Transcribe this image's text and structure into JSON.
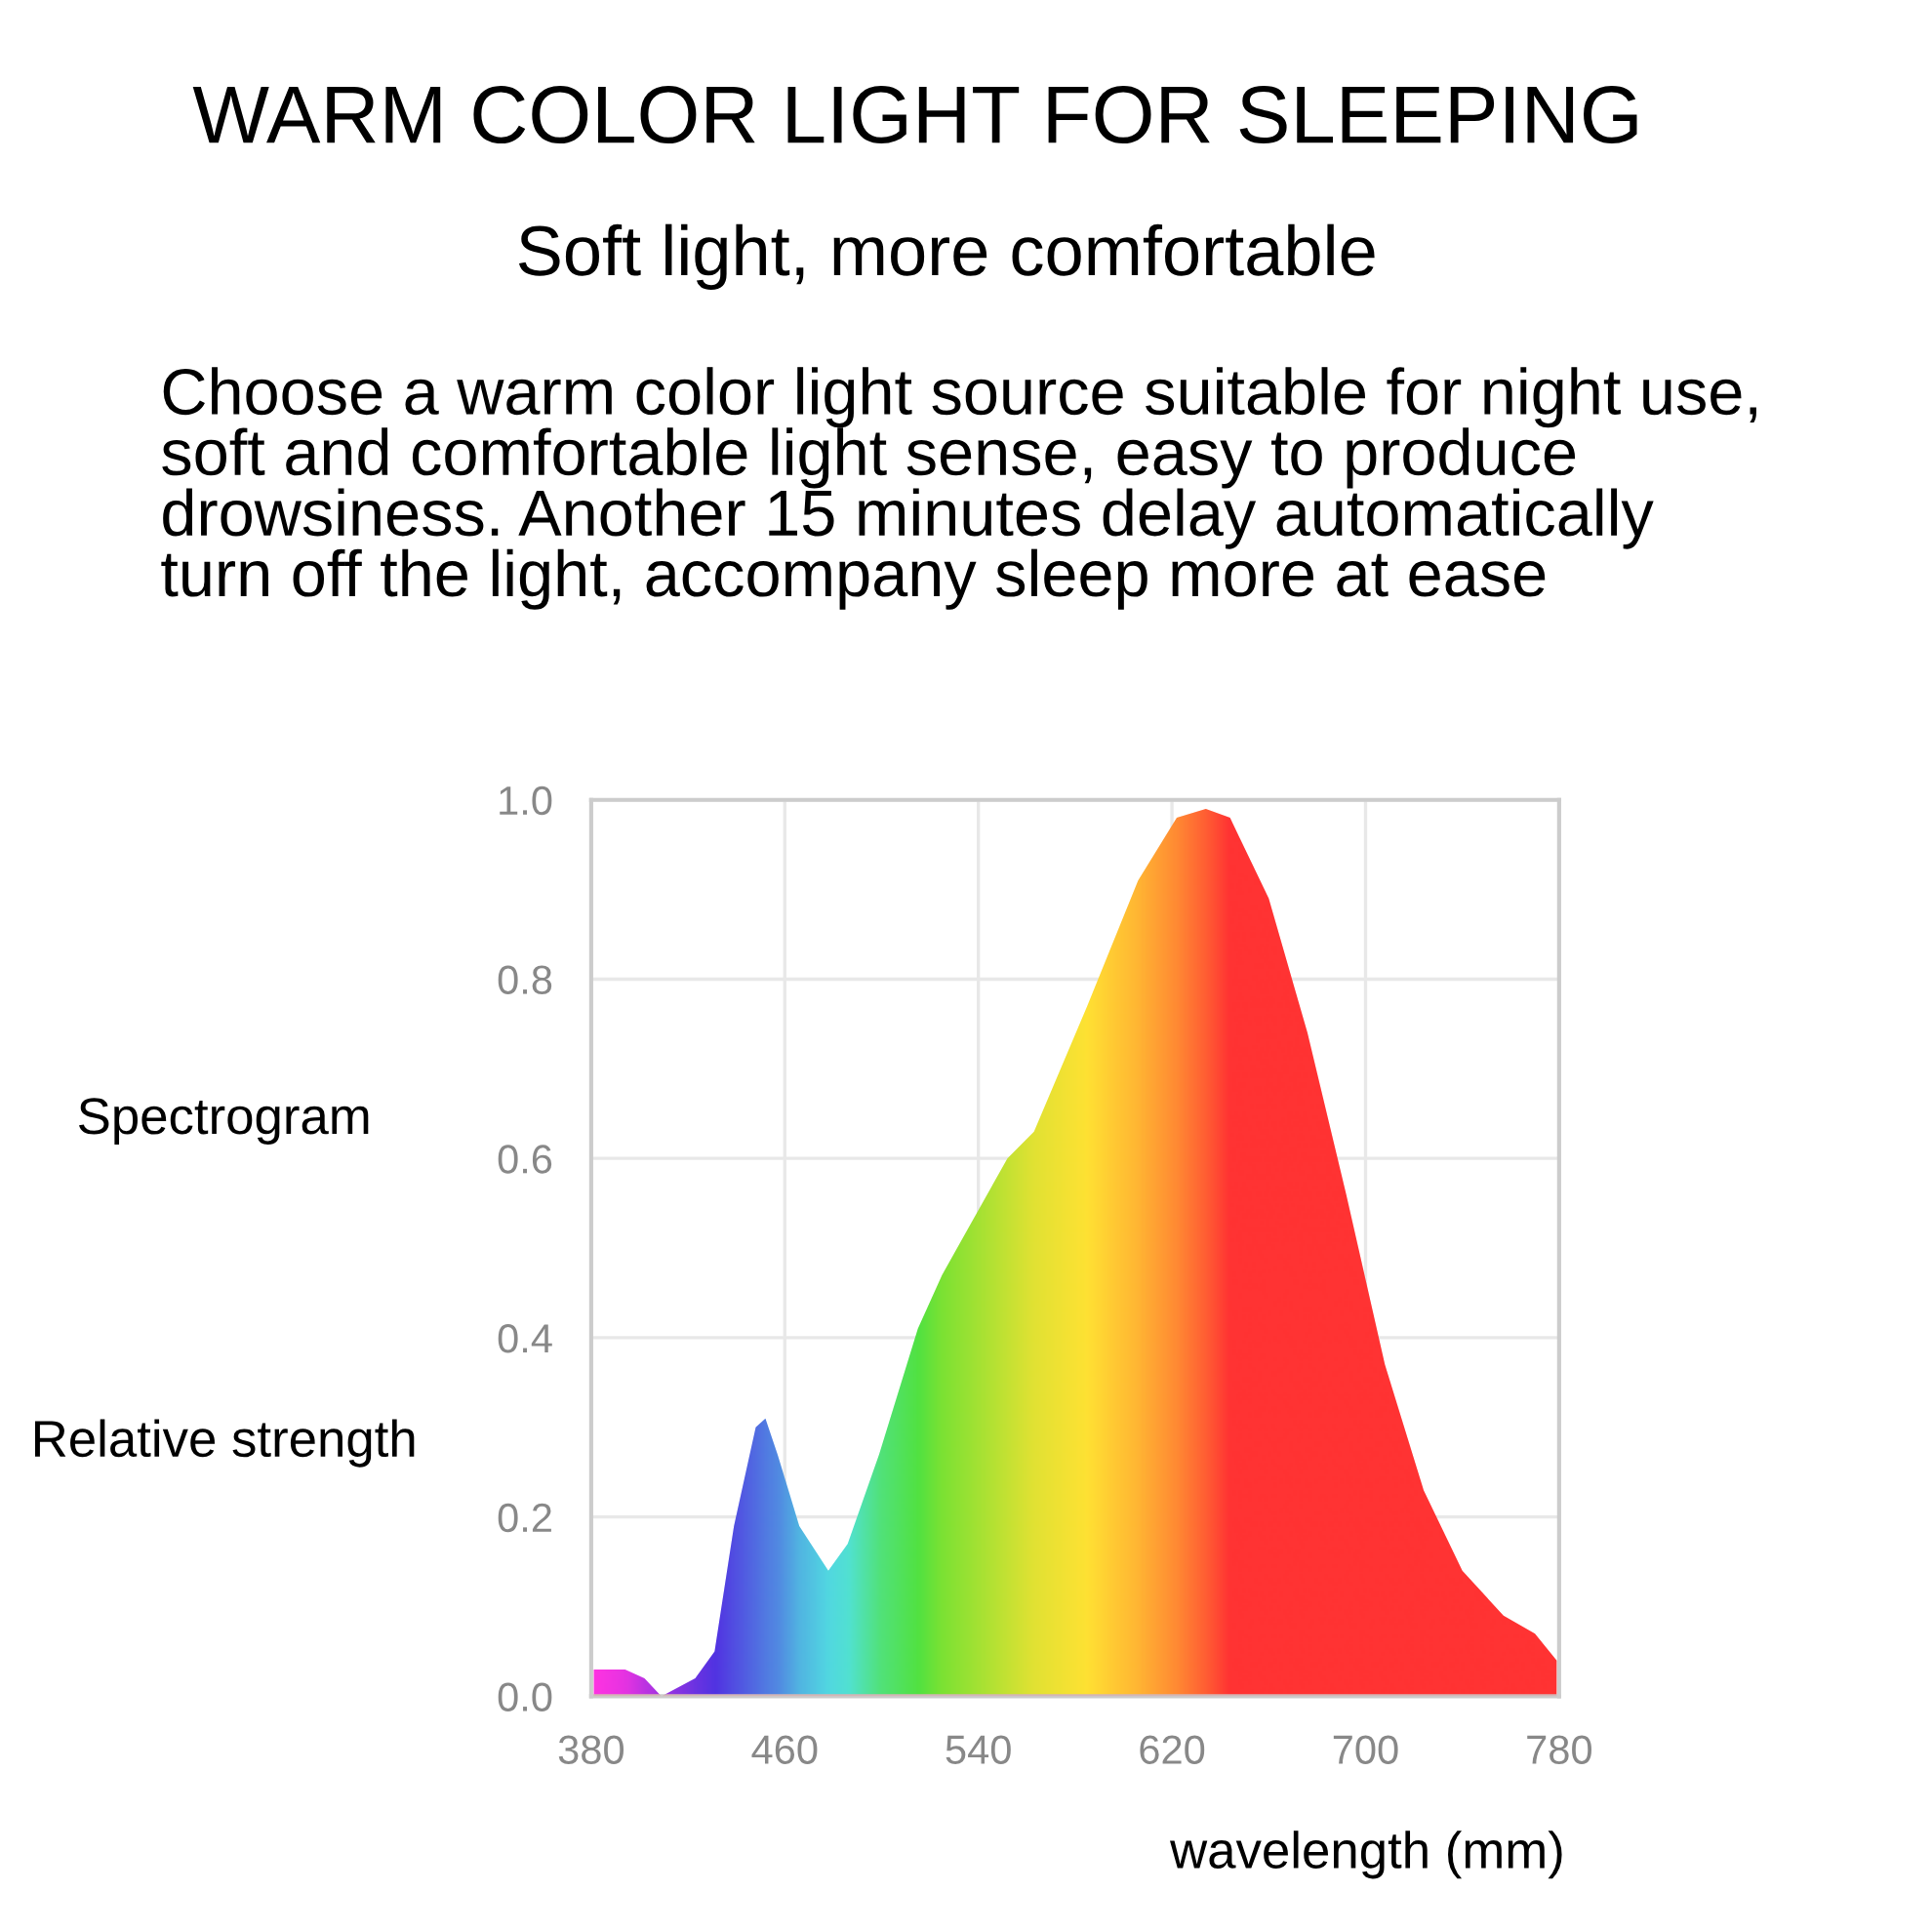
{
  "chart_data": {
    "type": "area",
    "title": "WARM COLOR LIGHT FOR SLEEPING",
    "subtitle": "Soft light, more comfortable",
    "annotations": [
      "Choose a warm color light source suitable for night use, soft and comfortable light sense, easy to produce drowsiness. Another 15 minutes delay automatically turn off the light, accompany sleep more at ease"
    ],
    "ylabel": "Spectrogram\nRelative strength",
    "xlabel": "wavelength (mm)",
    "x": [
      381,
      394,
      402,
      409,
      423,
      431,
      439,
      448,
      452,
      457,
      466,
      478,
      486,
      499,
      515,
      525,
      552,
      563,
      585,
      606,
      622,
      634,
      644,
      660,
      676,
      692,
      708,
      724,
      740,
      757,
      770,
      779
    ],
    "series": [
      {
        "color": "#ff3333",
        "values": [
          0.03,
          0.03,
          0.02,
          0.0,
          0.02,
          0.05,
          0.19,
          0.3,
          0.31,
          0.27,
          0.19,
          0.14,
          0.17,
          0.27,
          0.41,
          0.47,
          0.6,
          0.63,
          0.77,
          0.91,
          0.98,
          0.99,
          0.98,
          0.89,
          0.74,
          0.56,
          0.37,
          0.23,
          0.14,
          0.09,
          0.07,
          0.04
        ],
        "colors": [
          "#ff33ff",
          "#e033ff",
          "#b033ff",
          "#9033ff",
          "#5033ff",
          "#3333ff",
          "#3355ff",
          "#3377ff",
          "#3388ff",
          "#3399ff",
          "#33ccff",
          "#33f5ff",
          "#33ffee",
          "#33ff88",
          "#33ff44",
          "#66ff33",
          "#bbff33",
          "#ddff33",
          "#ffff33",
          "#ffcc33",
          "#ff9933",
          "#ff6633",
          "#ff3333",
          "#ff3333",
          "#ff3333",
          "#ff3333",
          "#ff3333",
          "#ff3333",
          "#ff3333",
          "#ff3333",
          "#ff3333",
          "#ff3333"
        ]
      }
    ],
    "xlim": [
      380,
      780
    ],
    "xticks": [
      380,
      460,
      540,
      620,
      700,
      780
    ],
    "ylim": [
      0.0,
      1.0
    ],
    "yticks": [
      {
        "value": 0.0,
        "label": "0.0"
      },
      0.2,
      0.4,
      0.6,
      0.8,
      {
        "value": 1.0,
        "label": "1.0"
      }
    ],
    "grid": true,
    "legend": false
  }
}
